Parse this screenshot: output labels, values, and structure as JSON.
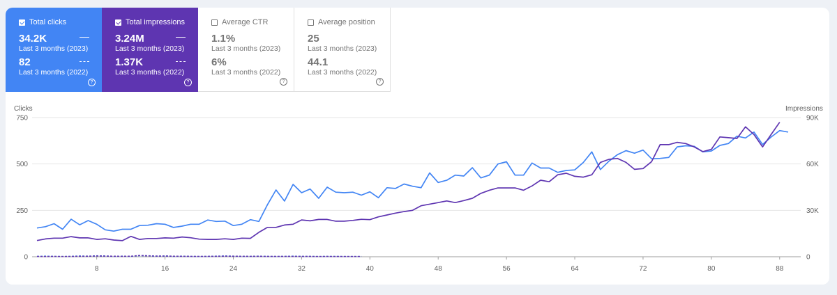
{
  "tiles": [
    {
      "label": "Total clicks",
      "checked": true,
      "value": "34.2K",
      "period": "Last 3 months (2023)",
      "value2": "82",
      "period2": "Last 3 months (2022)"
    },
    {
      "label": "Total impressions",
      "checked": true,
      "value": "3.24M",
      "period": "Last 3 months (2023)",
      "value2": "1.37K",
      "period2": "Last 3 months (2022)"
    },
    {
      "label": "Average CTR",
      "checked": false,
      "value": "1.1%",
      "period": "Last 3 months (2023)",
      "value2": "6%",
      "period2": "Last 3 months (2022)"
    },
    {
      "label": "Average position",
      "checked": false,
      "value": "25",
      "period": "Last 3 months (2023)",
      "value2": "44.1",
      "period2": "Last 3 months (2022)"
    }
  ],
  "help_glyph": "?",
  "colors": {
    "clicks": "#4285f4",
    "impressions": "#5e35b1"
  },
  "chart_data": {
    "type": "line",
    "left_axis_title": "Clicks",
    "right_axis_title": "Impressions",
    "ylim_left": [
      0,
      750
    ],
    "ylim_right": [
      0,
      90000
    ],
    "left_ticks": [
      "0",
      "250",
      "500",
      "750"
    ],
    "right_ticks": [
      "0",
      "30K",
      "60K",
      "90K"
    ],
    "x_ticks": [
      "8",
      "16",
      "24",
      "32",
      "40",
      "48",
      "56",
      "64",
      "72",
      "80",
      "88"
    ],
    "x_tick_values": [
      8,
      16,
      24,
      32,
      40,
      48,
      56,
      64,
      72,
      80,
      88
    ],
    "x_range": [
      1,
      90
    ],
    "series": [
      {
        "name": "Total clicks",
        "axis": "left",
        "color": "#4285f4",
        "values": [
          155,
          162,
          178,
          148,
          202,
          172,
          195,
          175,
          145,
          138,
          148,
          148,
          168,
          170,
          178,
          175,
          158,
          165,
          175,
          175,
          198,
          190,
          192,
          168,
          175,
          200,
          190,
          280,
          360,
          300,
          390,
          345,
          365,
          315,
          375,
          348,
          345,
          348,
          332,
          350,
          318,
          372,
          368,
          392,
          380,
          372,
          452,
          400,
          412,
          440,
          435,
          480,
          425,
          440,
          500,
          512,
          440,
          440,
          505,
          478,
          478,
          455,
          465,
          468,
          508,
          565,
          470,
          515,
          550,
          572,
          558,
          575,
          528,
          530,
          535,
          592,
          598,
          595,
          565,
          570,
          600,
          610,
          650,
          640,
          672,
          605,
          645,
          680,
          672
        ]
      },
      {
        "name": "Total impressions",
        "axis": "right",
        "color": "#5e35b1",
        "values": [
          10500,
          11500,
          12000,
          12000,
          13000,
          12200,
          12200,
          11200,
          11600,
          10800,
          10400,
          13200,
          11200,
          11800,
          11800,
          12200,
          12000,
          12800,
          12300,
          11400,
          11200,
          11200,
          11600,
          11200,
          12000,
          11900,
          15800,
          19000,
          19000,
          20500,
          21000,
          23800,
          23200,
          24100,
          24100,
          23000,
          23000,
          23500,
          24200,
          24000,
          25800,
          27000,
          28200,
          29200,
          30000,
          33000,
          34000,
          35000,
          36100,
          35000,
          36300,
          37800,
          41000,
          43000,
          44500,
          44500,
          44500,
          43000,
          45800,
          49500,
          48500,
          53000,
          54000,
          52000,
          51500,
          53000,
          61000,
          63000,
          63600,
          61000,
          56500,
          57000,
          61500,
          72500,
          72500,
          74000,
          73200,
          71000,
          68000,
          69500,
          77500,
          77000,
          76500,
          84000,
          79000,
          71000,
          79000,
          87000
        ]
      },
      {
        "name": "Total clicks (2022)",
        "axis": "left",
        "color": "#4285f4",
        "dashed": true,
        "values": [
          2,
          3,
          2,
          1,
          2,
          4,
          3,
          5,
          4,
          2,
          3,
          2,
          6,
          5,
          3,
          4,
          2,
          3,
          2,
          1,
          2,
          3,
          4,
          3,
          2,
          2,
          3,
          2,
          1,
          2,
          3,
          2,
          2,
          1,
          2,
          2,
          1,
          1,
          1
        ]
      },
      {
        "name": "Total impressions (2022)",
        "axis": "right",
        "color": "#5e35b1",
        "dashed": true,
        "values": [
          200,
          150,
          180,
          120,
          160,
          250,
          300,
          500,
          420,
          300,
          250,
          320,
          800,
          600,
          400,
          450,
          300,
          260,
          240,
          200,
          220,
          260,
          380,
          300,
          250,
          220,
          260,
          200,
          180,
          160,
          200,
          180,
          160,
          140,
          160,
          150,
          140,
          120,
          120
        ]
      }
    ]
  }
}
